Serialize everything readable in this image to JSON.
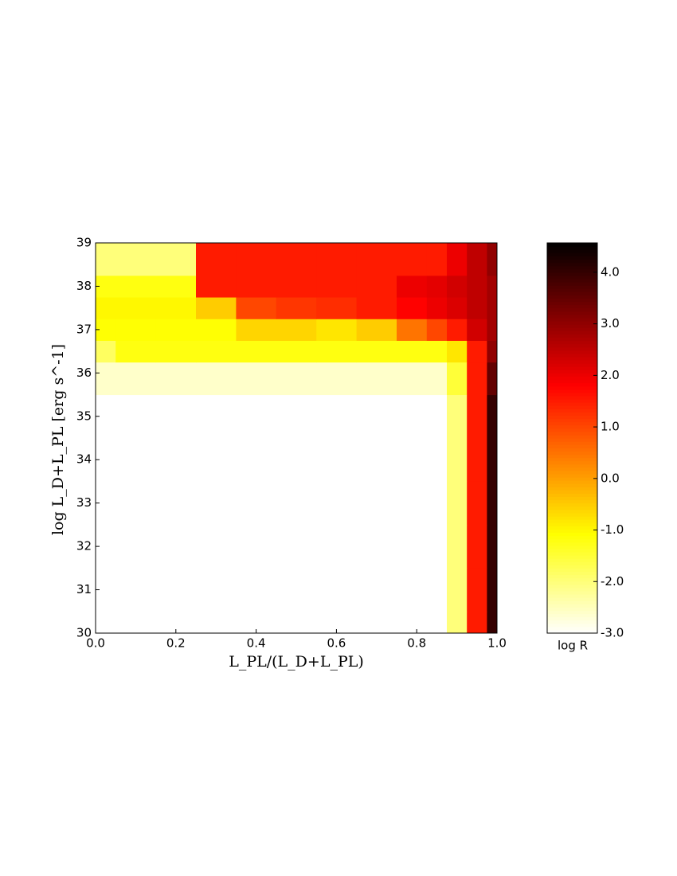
{
  "chart_data": {
    "type": "contour",
    "xlabel": "L_PL/(L_D+L_PL)",
    "ylabel": "log L_D+L_PL [erg s^-1]",
    "colorbar_label": "log R",
    "colormap": "hot_r",
    "x": [
      0,
      0.1,
      0.2,
      0.3,
      0.4,
      0.5,
      0.6,
      0.7,
      0.8,
      0.85,
      0.9,
      0.95,
      1.0
    ],
    "y": [
      30,
      31,
      32,
      33,
      34,
      35,
      36,
      36.5,
      37,
      37.5,
      38,
      38.5
    ],
    "z": [
      [
        null,
        null,
        null,
        null,
        null,
        null,
        null,
        null,
        null,
        null,
        -2,
        1.5,
        4
      ],
      [
        null,
        null,
        null,
        null,
        null,
        null,
        null,
        null,
        null,
        null,
        -2,
        1.5,
        4
      ],
      [
        null,
        null,
        null,
        null,
        null,
        null,
        null,
        null,
        null,
        null,
        -2,
        1.5,
        4
      ],
      [
        null,
        null,
        null,
        null,
        null,
        null,
        null,
        null,
        null,
        null,
        -2,
        1.5,
        4
      ],
      [
        null,
        null,
        null,
        null,
        null,
        null,
        null,
        null,
        null,
        null,
        -2,
        1.5,
        4
      ],
      [
        null,
        null,
        null,
        null,
        null,
        null,
        null,
        null,
        null,
        null,
        -2,
        1.5,
        4
      ],
      [
        -2.6,
        -2.6,
        -2.6,
        -2.6,
        -2.6,
        -2.6,
        -2.6,
        -2.6,
        -2.6,
        -2.6,
        -1.5,
        1.5,
        3.5
      ],
      [
        -1.8,
        -1.2,
        -1.2,
        -1.2,
        -1.2,
        -1.2,
        -1.2,
        -1.2,
        -1.2,
        -1.2,
        -0.8,
        1.5,
        3
      ],
      [
        -1.1,
        -1.1,
        -1.1,
        -1.1,
        -0.6,
        -0.6,
        -0.8,
        -0.5,
        0.5,
        1,
        1.5,
        2.3,
        2.8
      ],
      [
        -1,
        -1,
        -1,
        -0.5,
        1,
        1.2,
        1.3,
        1.5,
        1.8,
        2,
        2.2,
        2.5,
        2.8
      ],
      [
        -1.2,
        -1.2,
        -1.2,
        1.5,
        1.5,
        1.5,
        1.5,
        1.5,
        2,
        2.1,
        2.3,
        2.5,
        2.8
      ],
      [
        -2,
        -2,
        -2,
        1.5,
        1.5,
        1.5,
        1.5,
        1.5,
        1.5,
        1.5,
        2,
        2.5,
        3
      ]
    ],
    "xlim": [
      0,
      1
    ],
    "ylim": [
      30,
      39
    ],
    "clim": [
      -3,
      4.57
    ],
    "xticks": [
      {
        "value": 0,
        "label": "0.0"
      },
      {
        "value": 0.2,
        "label": "0.2"
      },
      {
        "value": 0.4,
        "label": "0.4"
      },
      {
        "value": 0.6,
        "label": "0.6"
      },
      {
        "value": 0.8,
        "label": "0.8"
      },
      {
        "value": 1,
        "label": "1.0"
      }
    ],
    "yticks": [
      30,
      31,
      32,
      33,
      34,
      35,
      36,
      37,
      38,
      39
    ],
    "cticks": [
      {
        "value": -3,
        "label": "-3.0"
      },
      {
        "value": -2,
        "label": "-2.0"
      },
      {
        "value": -1,
        "label": "-1.0"
      },
      {
        "value": 0,
        "label": "0.0"
      },
      {
        "value": 1,
        "label": "1.0"
      },
      {
        "value": 2,
        "label": "2.0"
      },
      {
        "value": 3,
        "label": "3.0"
      },
      {
        "value": 4,
        "label": "4.0"
      }
    ]
  }
}
